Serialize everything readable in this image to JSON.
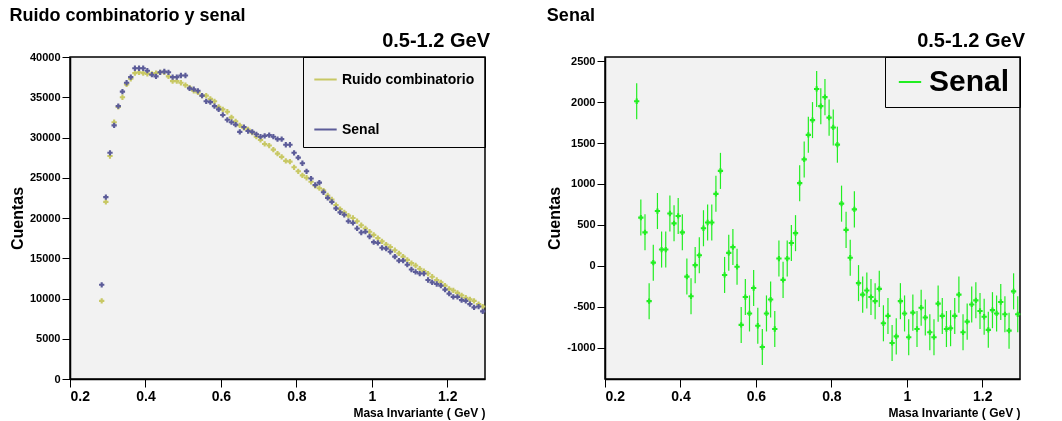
{
  "chart_data": [
    {
      "type": "scatter",
      "title": "Ruido combinatorio y senal",
      "xlabel": "Masa  Invariante ( GeV )",
      "ylabel": "Cuentas",
      "annotations": [
        "0.5-1.2 GeV"
      ],
      "legend": "top right",
      "xlim": [
        0.2,
        1.3
      ],
      "xticks": [
        0.2,
        0.4,
        0.6,
        0.8,
        1,
        1.2
      ],
      "ylim": [
        0,
        40000
      ],
      "yticks": [
        0,
        5000,
        10000,
        15000,
        20000,
        25000,
        30000,
        35000,
        40000
      ],
      "x": [
        0.284,
        0.295,
        0.306,
        0.317,
        0.328,
        0.339,
        0.35,
        0.361,
        0.372,
        0.383,
        0.394,
        0.405,
        0.417,
        0.428,
        0.439,
        0.45,
        0.461,
        0.472,
        0.483,
        0.494,
        0.506,
        0.517,
        0.528,
        0.539,
        0.55,
        0.561,
        0.572,
        0.583,
        0.594,
        0.605,
        0.617,
        0.628,
        0.639,
        0.65,
        0.661,
        0.672,
        0.683,
        0.694,
        0.705,
        0.716,
        0.728,
        0.739,
        0.75,
        0.761,
        0.772,
        0.783,
        0.794,
        0.805,
        0.816,
        0.827,
        0.839,
        0.85,
        0.861,
        0.872,
        0.883,
        0.894,
        0.905,
        0.916,
        0.927,
        0.938,
        0.95,
        0.961,
        0.972,
        0.983,
        0.994,
        1.005,
        1.016,
        1.027,
        1.038,
        1.049,
        1.061,
        1.072,
        1.083,
        1.094,
        1.105,
        1.116,
        1.127,
        1.138,
        1.149,
        1.16,
        1.172,
        1.183,
        1.194,
        1.205,
        1.216,
        1.227,
        1.238,
        1.249,
        1.26,
        1.271,
        1.283,
        1.294
      ],
      "series": [
        {
          "name": "Ruido combinatorio",
          "color": "#c8c864",
          "values": [
            9700,
            22000,
            27700,
            31900,
            33800,
            35000,
            36600,
            37300,
            38000,
            38100,
            38000,
            37900,
            37900,
            38000,
            38100,
            38100,
            37600,
            37000,
            37000,
            36800,
            36500,
            36200,
            35800,
            35600,
            35200,
            35200,
            34800,
            34500,
            33800,
            33500,
            33200,
            32500,
            32000,
            31500,
            31200,
            31000,
            30600,
            30100,
            29700,
            29200,
            29000,
            28500,
            28000,
            27600,
            27100,
            27000,
            26300,
            25800,
            25300,
            25000,
            24500,
            24000,
            23700,
            23400,
            22800,
            22300,
            21600,
            21100,
            20700,
            20300,
            20000,
            19600,
            19100,
            18700,
            18300,
            17900,
            17500,
            17100,
            16700,
            16400,
            16000,
            15600,
            15200,
            14800,
            14400,
            14100,
            13700,
            13400,
            13100,
            12700,
            12300,
            12000,
            11600,
            11200,
            11000,
            10700,
            10400,
            10100,
            9900,
            9700,
            9300,
            9000
          ],
          "errors": [
            150,
            150,
            150,
            150,
            150,
            150,
            150,
            150,
            150,
            150,
            150,
            150,
            150,
            150,
            150,
            150,
            150,
            150,
            150,
            150,
            150,
            150,
            150,
            150,
            150,
            150,
            150,
            150,
            150,
            150,
            150,
            150,
            150,
            150,
            150,
            150,
            150,
            150,
            150,
            150,
            150,
            150,
            150,
            150,
            150,
            150,
            150,
            150,
            150,
            150,
            150,
            150,
            150,
            150,
            150,
            150,
            150,
            150,
            150,
            150,
            150,
            150,
            150,
            150,
            150,
            150,
            150,
            150,
            150,
            150,
            150,
            150,
            150,
            150,
            150,
            150,
            150,
            150,
            150,
            150,
            150,
            150,
            150,
            150,
            150,
            150,
            150,
            150,
            150,
            150,
            150,
            150
          ]
        },
        {
          "name": "Senal",
          "color": "#5c5c99",
          "values": [
            11700,
            22600,
            28100,
            31500,
            33900,
            35700,
            36800,
            37500,
            38600,
            38600,
            38600,
            38300,
            37800,
            37600,
            38100,
            38200,
            38100,
            37500,
            37500,
            37700,
            37700,
            36100,
            36000,
            35800,
            35200,
            34500,
            34400,
            33900,
            33500,
            32800,
            32200,
            31900,
            31600,
            30700,
            31300,
            30800,
            30700,
            30400,
            30100,
            30200,
            30300,
            30100,
            29800,
            29800,
            29100,
            29100,
            28100,
            27500,
            26800,
            25800,
            24900,
            24100,
            24400,
            23200,
            22500,
            22000,
            21200,
            20700,
            20400,
            19600,
            19400,
            18700,
            18200,
            18300,
            17700,
            17000,
            16900,
            16300,
            16200,
            15800,
            15200,
            14700,
            14700,
            14200,
            13600,
            13300,
            13100,
            13100,
            12300,
            12000,
            11800,
            11600,
            11100,
            10600,
            10200,
            10200,
            9800,
            9700,
            9300,
            8900,
            9000,
            8400
          ],
          "errors": [
            200,
            200,
            200,
            200,
            200,
            200,
            200,
            200,
            200,
            200,
            200,
            200,
            200,
            200,
            200,
            200,
            200,
            200,
            200,
            200,
            200,
            200,
            200,
            200,
            200,
            200,
            200,
            200,
            200,
            200,
            200,
            200,
            200,
            200,
            200,
            200,
            200,
            200,
            200,
            200,
            200,
            200,
            200,
            200,
            200,
            200,
            200,
            200,
            200,
            200,
            200,
            200,
            200,
            200,
            200,
            200,
            200,
            200,
            200,
            200,
            200,
            200,
            200,
            200,
            200,
            200,
            200,
            200,
            200,
            200,
            200,
            200,
            200,
            200,
            200,
            200,
            200,
            200,
            200,
            200,
            200,
            200,
            200,
            200,
            200,
            200,
            200,
            200,
            200,
            200,
            200,
            200
          ]
        }
      ],
      "marker": "cross"
    },
    {
      "type": "scatter",
      "title": "Senal",
      "xlabel": "Masa  Invariante ( GeV )",
      "ylabel": "Cuentas",
      "annotations": [
        "0.5-1.2 GeV"
      ],
      "legend": "top right",
      "xlim": [
        0.2,
        1.3
      ],
      "xticks": [
        0.2,
        0.4,
        0.6,
        0.8,
        1,
        1.2
      ],
      "ylim": [
        -1380,
        2550
      ],
      "yticks": [
        -1000,
        -500,
        0,
        500,
        1000,
        1500,
        2000,
        2500
      ],
      "x": [
        0.284,
        0.295,
        0.306,
        0.317,
        0.328,
        0.339,
        0.35,
        0.361,
        0.372,
        0.383,
        0.394,
        0.405,
        0.417,
        0.428,
        0.439,
        0.45,
        0.461,
        0.472,
        0.483,
        0.494,
        0.506,
        0.517,
        0.528,
        0.539,
        0.55,
        0.561,
        0.572,
        0.583,
        0.594,
        0.605,
        0.617,
        0.628,
        0.639,
        0.65,
        0.661,
        0.672,
        0.683,
        0.694,
        0.705,
        0.716,
        0.728,
        0.739,
        0.75,
        0.761,
        0.772,
        0.783,
        0.794,
        0.805,
        0.816,
        0.827,
        0.839,
        0.85,
        0.861,
        0.872,
        0.883,
        0.894,
        0.905,
        0.916,
        0.927,
        0.938,
        0.95,
        0.961,
        0.972,
        0.983,
        0.994,
        1.005,
        1.016,
        1.027,
        1.038,
        1.049,
        1.061,
        1.072,
        1.083,
        1.094,
        1.105,
        1.116,
        1.127,
        1.138,
        1.149,
        1.16,
        1.172,
        1.183,
        1.194,
        1.205,
        1.216,
        1.227,
        1.238,
        1.249,
        1.26,
        1.271,
        1.283,
        1.294
      ],
      "marker": "cross",
      "series": [
        {
          "name": "Senal",
          "color": "#22ee22",
          "values": [
            2010,
            590,
            410,
            -430,
            40,
            670,
            200,
            200,
            640,
            520,
            610,
            410,
            -130,
            -370,
            10,
            130,
            460,
            530,
            530,
            880,
            1160,
            -110,
            160,
            230,
            -10,
            -720,
            -380,
            -580,
            -270,
            -730,
            -990,
            -580,
            -410,
            -770,
            90,
            -170,
            90,
            280,
            400,
            1010,
            1300,
            1600,
            1780,
            2160,
            1950,
            2060,
            1810,
            1690,
            1480,
            760,
            440,
            100,
            690,
            -210,
            -350,
            -300,
            -380,
            -430,
            -280,
            -700,
            -610,
            -940,
            -860,
            -430,
            -580,
            -870,
            -570,
            -770,
            -510,
            -630,
            -810,
            -870,
            -460,
            -610,
            -770,
            -760,
            -610,
            -350,
            -810,
            -680,
            -470,
            -420,
            -550,
            -620,
            -780,
            -540,
            -580,
            -440,
            -590,
            -790,
            -310,
            -590
          ],
          "errors": [
            220,
            220,
            220,
            220,
            220,
            220,
            220,
            220,
            220,
            220,
            220,
            220,
            220,
            220,
            220,
            220,
            220,
            220,
            220,
            220,
            220,
            220,
            220,
            220,
            220,
            220,
            220,
            220,
            220,
            220,
            220,
            220,
            220,
            220,
            220,
            220,
            220,
            220,
            220,
            220,
            220,
            220,
            220,
            220,
            220,
            220,
            220,
            220,
            220,
            220,
            220,
            220,
            220,
            220,
            220,
            220,
            220,
            220,
            220,
            220,
            220,
            220,
            220,
            220,
            220,
            220,
            220,
            220,
            220,
            220,
            220,
            220,
            220,
            220,
            220,
            220,
            220,
            220,
            220,
            220,
            220,
            220,
            220,
            220,
            220,
            220,
            220,
            220,
            220,
            220,
            220,
            220
          ]
        }
      ]
    }
  ]
}
